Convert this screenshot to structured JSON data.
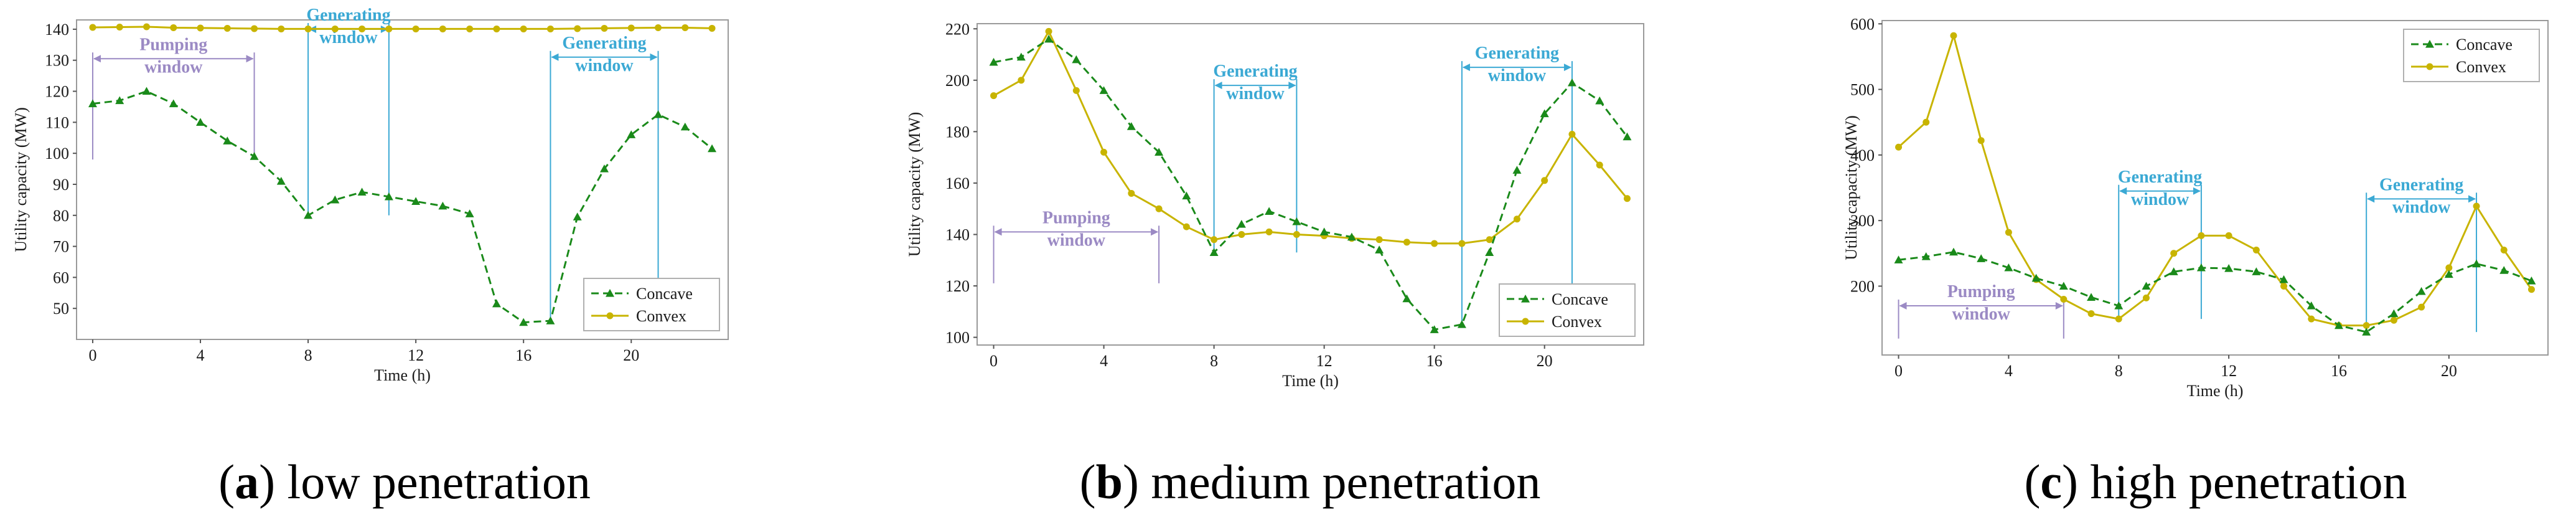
{
  "series_meta": [
    {
      "name": "Concave",
      "color": "#1a8a1a",
      "marker": "triangle",
      "dash": true
    },
    {
      "name": "Convex",
      "color": "#c8b400",
      "marker": "circle",
      "dash": false
    }
  ],
  "chart_data": [
    {
      "type": "line",
      "caption_letter": "a",
      "caption_text": " low penetration",
      "xlabel": "Time (h)",
      "ylabel": "Utility capacity (MW)",
      "x": [
        0,
        1,
        2,
        3,
        4,
        5,
        6,
        7,
        8,
        9,
        10,
        11,
        12,
        13,
        14,
        15,
        16,
        17,
        18,
        19,
        20,
        21,
        22,
        23
      ],
      "xticks": [
        0,
        4,
        8,
        12,
        16,
        20
      ],
      "ylim": [
        40,
        143
      ],
      "yticks": [
        50,
        60,
        70,
        80,
        90,
        100,
        110,
        120,
        130,
        140
      ],
      "legend": "bottom-right",
      "series": [
        {
          "name": "Concave",
          "values": [
            116,
            117,
            120,
            116,
            110,
            104,
            99,
            91,
            80,
            85,
            87.5,
            86,
            84.5,
            83,
            80.5,
            51.5,
            45.5,
            46,
            79.5,
            95,
            106,
            112.5,
            108.5,
            101.5
          ]
        },
        {
          "name": "Convex",
          "values": [
            140.6,
            140.7,
            140.8,
            140.5,
            140.4,
            140.3,
            140.2,
            140.1,
            140.1,
            140.1,
            140.1,
            140.1,
            140.1,
            140.1,
            140.1,
            140.1,
            140.1,
            140.1,
            140.2,
            140.3,
            140.4,
            140.5,
            140.5,
            140.3
          ]
        }
      ],
      "windows": [
        {
          "label": [
            "Pumping",
            "window"
          ],
          "from": 0,
          "to": 6,
          "color": "#9b8ac4",
          "y": 130.5,
          "vline_bottom": 98
        },
        {
          "label": [
            "Generating",
            "window"
          ],
          "from": 8,
          "to": 11,
          "color": "#3ba9d4",
          "y": 140,
          "vline_bottom": 80
        },
        {
          "label": [
            "Generating",
            "window"
          ],
          "from": 17,
          "to": 21,
          "color": "#3ba9d4",
          "y": 131,
          "vline_bottom": 46
        }
      ]
    },
    {
      "type": "line",
      "caption_letter": "b",
      "caption_text": " medium penetration",
      "xlabel": "Time (h)",
      "ylabel": "Utility capacity (MW)",
      "x": [
        0,
        1,
        2,
        3,
        4,
        5,
        6,
        7,
        8,
        9,
        10,
        11,
        12,
        13,
        14,
        15,
        16,
        17,
        18,
        19,
        20,
        21,
        22,
        23
      ],
      "xticks": [
        0,
        4,
        8,
        12,
        16,
        20
      ],
      "ylim": [
        97,
        222
      ],
      "yticks": [
        100,
        120,
        140,
        160,
        180,
        200,
        220
      ],
      "legend": "bottom-right",
      "series": [
        {
          "name": "Concave",
          "values": [
            207,
            209,
            216,
            208,
            196,
            182,
            172,
            155,
            133,
            144,
            149,
            145,
            141,
            139,
            134,
            115,
            103,
            105,
            133,
            165,
            187,
            199,
            192,
            178
          ]
        },
        {
          "name": "Convex",
          "values": [
            194,
            200,
            219,
            196,
            172,
            156,
            150,
            143,
            138,
            140,
            141,
            140,
            139.5,
            138.5,
            138,
            137,
            136.5,
            136.5,
            138,
            146,
            161,
            179,
            167,
            154
          ]
        }
      ],
      "windows": [
        {
          "label": [
            "Pumping",
            "window"
          ],
          "from": 0,
          "to": 6,
          "color": "#9b8ac4",
          "y": 141,
          "vline_bottom": 121
        },
        {
          "label": [
            "Generating",
            "window"
          ],
          "from": 8,
          "to": 11,
          "color": "#3ba9d4",
          "y": 198,
          "vline_bottom": 133
        },
        {
          "label": [
            "Generating",
            "window"
          ],
          "from": 17,
          "to": 21,
          "color": "#3ba9d4",
          "y": 205,
          "vline_bottom": 105
        }
      ]
    },
    {
      "type": "line",
      "caption_letter": "c",
      "caption_text": " high penetration",
      "xlabel": "Time (h)",
      "ylabel": "Utility capacity (MW)",
      "x": [
        0,
        1,
        2,
        3,
        4,
        5,
        6,
        7,
        8,
        9,
        10,
        11,
        12,
        13,
        14,
        15,
        16,
        17,
        18,
        19,
        20,
        21,
        22,
        23
      ],
      "xticks": [
        0,
        4,
        8,
        12,
        16,
        20
      ],
      "ylim": [
        95,
        605
      ],
      "yticks": [
        200,
        300,
        400,
        500,
        600
      ],
      "legend": "top-right",
      "series": [
        {
          "name": "Concave",
          "values": [
            240,
            245,
            252,
            242,
            228,
            212,
            200,
            183,
            170,
            200,
            222,
            228,
            227,
            222,
            210,
            170,
            140,
            130,
            158,
            192,
            218,
            234,
            224,
            208
          ]
        },
        {
          "name": "Convex",
          "values": [
            412,
            450,
            582,
            422,
            282,
            210,
            180,
            158,
            150,
            182,
            250,
            277,
            277,
            255,
            200,
            150,
            140,
            140,
            148,
            168,
            228,
            322,
            255,
            195
          ]
        }
      ],
      "windows": [
        {
          "label": [
            "Pumping",
            "window"
          ],
          "from": 0,
          "to": 6,
          "color": "#9b8ac4",
          "y": 170,
          "vline_bottom": 120
        },
        {
          "label": [
            "Generating",
            "window"
          ],
          "from": 8,
          "to": 11,
          "color": "#3ba9d4",
          "y": 345,
          "vline_bottom": 150
        },
        {
          "label": [
            "Generating",
            "window"
          ],
          "from": 17,
          "to": 21,
          "color": "#3ba9d4",
          "y": 333,
          "vline_bottom": 130
        }
      ]
    }
  ]
}
